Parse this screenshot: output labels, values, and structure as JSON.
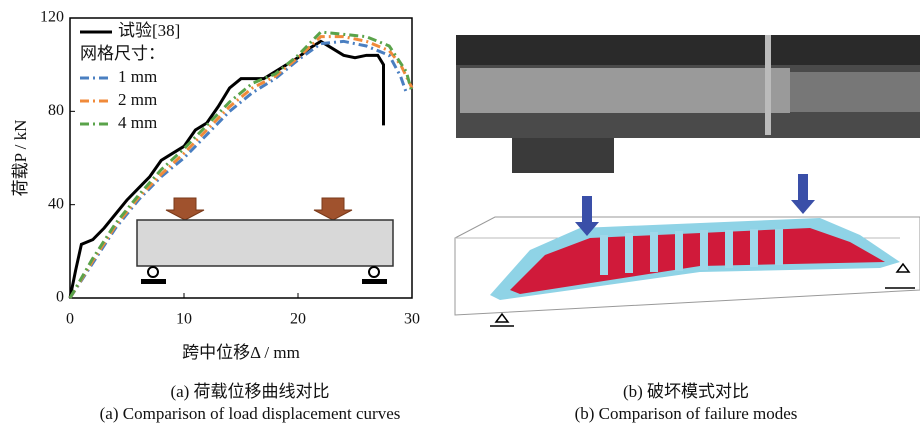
{
  "chart_data": {
    "type": "line",
    "x_label": "跨中位移Δ / mm",
    "y_label": "荷载P / kN",
    "legend_title": "网格尺寸：",
    "xlim": [
      0,
      30
    ],
    "xticks": [
      0,
      10,
      20,
      30
    ],
    "ylim": [
      0,
      120
    ],
    "yticks": [
      0,
      40,
      80,
      120
    ],
    "series": [
      {
        "name": "试验[38]",
        "color": "#000000",
        "style": "solid",
        "x": [
          0,
          0.5,
          1,
          2,
          3,
          4,
          5,
          6,
          7,
          8,
          9,
          10,
          11,
          12,
          13,
          14,
          15,
          16,
          17,
          18,
          20,
          21,
          22,
          23,
          24,
          25,
          26,
          27,
          27.5,
          27.5
        ],
        "values": [
          0,
          12,
          23,
          25,
          30,
          36,
          42,
          47,
          52,
          59,
          62,
          65,
          72,
          75,
          82,
          90,
          94,
          94,
          94,
          97,
          103,
          107,
          110,
          107,
          104,
          103,
          104,
          104,
          100,
          74
        ]
      },
      {
        "name": "1 mm",
        "color": "#4a7fc1",
        "style": "dashdot",
        "x": [
          0,
          2,
          4,
          6,
          8,
          10,
          12,
          14,
          16,
          18,
          20,
          22,
          24,
          26,
          28,
          29,
          29.5
        ],
        "values": [
          0,
          15,
          30,
          42,
          52,
          60,
          70,
          80,
          88,
          94,
          102,
          109,
          110,
          108,
          104,
          95,
          88
        ]
      },
      {
        "name": "2 mm",
        "color": "#f08a3a",
        "style": "dashdot",
        "x": [
          0,
          2,
          4,
          6,
          8,
          10,
          12,
          14,
          16,
          18,
          20,
          22,
          24,
          26,
          28,
          29,
          30
        ],
        "values": [
          0,
          16,
          31,
          43,
          53,
          62,
          72,
          82,
          90,
          95,
          103,
          112,
          112,
          110,
          106,
          100,
          90
        ]
      },
      {
        "name": "4 mm",
        "color": "#5aa34a",
        "style": "dashdot",
        "x": [
          0,
          2,
          4,
          6,
          8,
          10,
          12,
          14,
          16,
          18,
          20,
          22,
          24,
          26,
          28,
          29.5,
          30
        ],
        "values": [
          0,
          17,
          32,
          44,
          55,
          64,
          74,
          84,
          92,
          96,
          104,
          114,
          113,
          112,
          108,
          97,
          88
        ]
      }
    ]
  },
  "captions": {
    "a_cn": "(a) 荷载位移曲线对比",
    "a_en": "(a) Comparison of load displacement curves",
    "b_cn": "(b) 破坏模式对比",
    "b_en": "(b) Comparison of failure modes"
  }
}
